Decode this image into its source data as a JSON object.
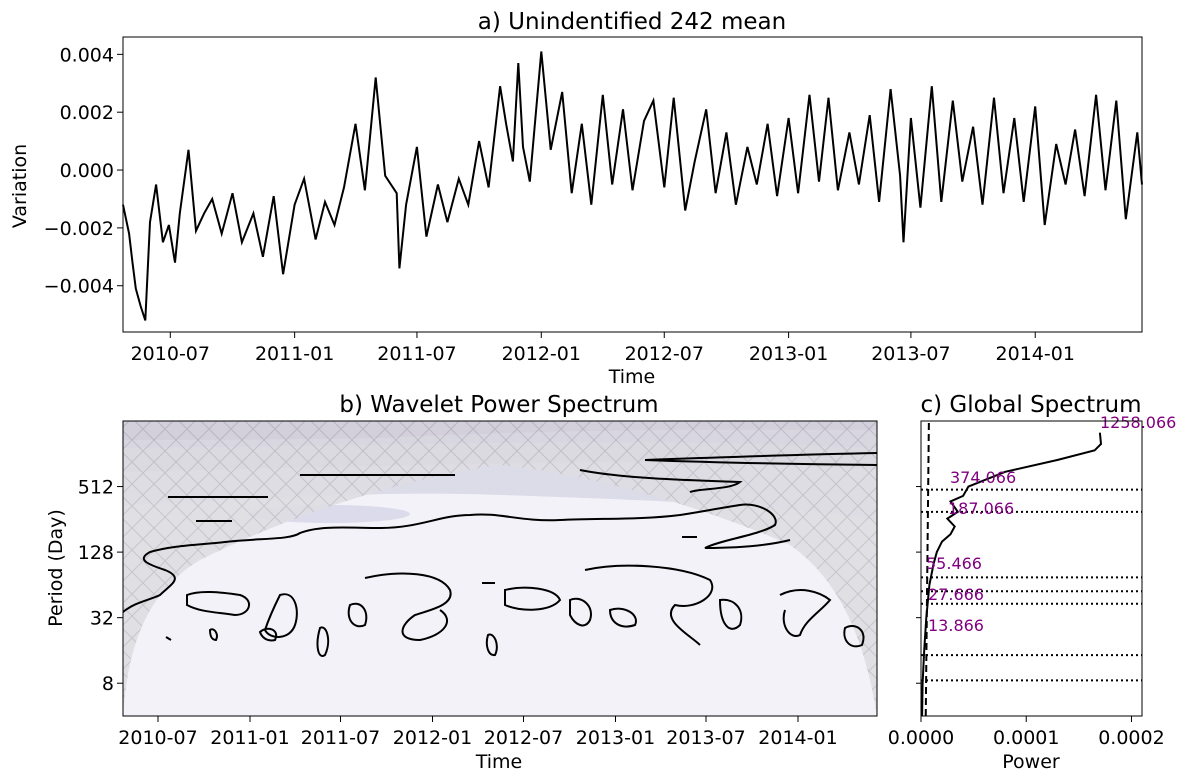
{
  "chart_data": [
    {
      "type": "line",
      "title": "a) Unindentified 242 mean",
      "xlabel": "Time",
      "ylabel": "Variation",
      "xlim": [
        "2010-04-22",
        "2014-06-08"
      ],
      "ylim": [
        -0.0056,
        0.0046
      ],
      "x_tick_labels": [
        "2010-07",
        "2011-01",
        "2011-07",
        "2012-01",
        "2012-07",
        "2013-01",
        "2013-07",
        "2014-01"
      ],
      "y_tick_labels": [
        "0.004",
        "0.002",
        "0.000",
        "−0.002",
        "−0.004"
      ],
      "y_ticks": [
        0.004,
        0.002,
        0.0,
        -0.002,
        -0.004
      ],
      "series": [
        {
          "color": "#000000",
          "x": [
            "2010-04-22",
            "2010-05-01",
            "2010-05-06",
            "2010-05-11",
            "2010-05-18",
            "2010-05-25",
            "2010-06-01",
            "2010-06-10",
            "2010-06-20",
            "2010-06-29",
            "2010-07-08",
            "2010-07-15",
            "2010-07-28",
            "2010-08-08",
            "2010-08-20",
            "2010-09-01",
            "2010-09-15",
            "2010-10-01",
            "2010-10-15",
            "2010-11-01",
            "2010-11-15",
            "2010-12-01",
            "2010-12-15",
            "2011-01-01",
            "2011-01-15",
            "2011-02-01",
            "2011-02-15",
            "2011-03-01",
            "2011-03-15",
            "2011-04-01",
            "2011-04-15",
            "2011-05-01",
            "2011-05-15",
            "2011-06-01",
            "2011-06-05",
            "2011-06-15",
            "2011-07-01",
            "2011-07-15",
            "2011-08-01",
            "2011-08-15",
            "2011-09-01",
            "2011-09-15",
            "2011-10-01",
            "2011-10-15",
            "2011-11-01",
            "2011-11-10",
            "2011-11-20",
            "2011-11-28",
            "2011-12-05",
            "2011-12-15",
            "2012-01-01",
            "2012-01-15",
            "2012-02-01",
            "2012-02-15",
            "2012-03-01",
            "2012-03-15",
            "2012-04-01",
            "2012-04-15",
            "2012-05-01",
            "2012-05-15",
            "2012-06-01",
            "2012-06-15",
            "2012-07-01",
            "2012-07-15",
            "2012-08-01",
            "2012-08-15",
            "2012-09-01",
            "2012-09-15",
            "2012-10-01",
            "2012-10-15",
            "2012-11-01",
            "2012-11-15",
            "2012-12-01",
            "2012-12-15",
            "2013-01-01",
            "2013-01-15",
            "2013-02-01",
            "2013-02-15",
            "2013-03-01",
            "2013-03-15",
            "2013-04-01",
            "2013-04-15",
            "2013-05-01",
            "2013-05-15",
            "2013-06-01",
            "2013-06-15",
            "2013-06-20",
            "2013-07-01",
            "2013-07-15",
            "2013-08-01",
            "2013-08-15",
            "2013-09-01",
            "2013-09-15",
            "2013-10-01",
            "2013-10-15",
            "2013-11-01",
            "2013-11-15",
            "2013-12-01",
            "2013-12-15",
            "2014-01-01",
            "2014-01-15",
            "2014-02-01",
            "2014-02-15",
            "2014-03-01",
            "2014-03-15",
            "2014-04-01",
            "2014-04-15",
            "2014-05-01",
            "2014-05-15",
            "2014-06-01",
            "2014-06-08"
          ],
          "y": [
            -0.0012,
            -0.0022,
            -0.0032,
            -0.0041,
            -0.0047,
            -0.0052,
            -0.0018,
            -0.0005,
            -0.0025,
            -0.0019,
            -0.0032,
            -0.0015,
            0.0007,
            -0.0021,
            -0.0015,
            -0.001,
            -0.0022,
            -0.0008,
            -0.0025,
            -0.0015,
            -0.003,
            -0.0009,
            -0.0036,
            -0.0012,
            -0.0003,
            -0.0024,
            -0.0011,
            -0.0019,
            -0.0006,
            0.0016,
            -0.0007,
            0.0032,
            -0.0002,
            -0.0008,
            -0.0034,
            -0.0012,
            0.0008,
            -0.0023,
            -0.0005,
            -0.0018,
            -0.0003,
            -0.0012,
            0.001,
            -0.0006,
            0.0029,
            0.0016,
            0.0003,
            0.0037,
            0.0008,
            -0.0004,
            0.0041,
            0.0007,
            0.0027,
            -0.0008,
            0.0016,
            -0.0012,
            0.0026,
            -0.0005,
            0.0021,
            -0.0007,
            0.0017,
            0.0024,
            -0.0006,
            0.0025,
            -0.0014,
            0.0003,
            0.0021,
            -0.0008,
            0.0013,
            -0.0012,
            0.0008,
            -0.0005,
            0.0016,
            -0.0009,
            0.0018,
            -0.0008,
            0.0026,
            -0.0004,
            0.0025,
            -0.0007,
            0.0013,
            -0.0005,
            0.0019,
            -0.0011,
            0.0028,
            -0.0002,
            -0.0025,
            0.0018,
            -0.0013,
            0.0029,
            -0.0011,
            0.0024,
            -0.0004,
            0.0015,
            -0.0012,
            0.0025,
            -0.0008,
            0.0018,
            -0.0011,
            0.0022,
            -0.0019,
            0.0009,
            -0.0005,
            0.0014,
            -0.0009,
            0.0026,
            -0.0007,
            0.0024,
            -0.0017,
            0.0013,
            -0.0005
          ]
        }
      ]
    },
    {
      "type": "heatmap",
      "title": "b) Wavelet Power Spectrum",
      "xlabel": "Time",
      "ylabel": "Period (Day)",
      "xlim": [
        "2010-04-22",
        "2014-06-08"
      ],
      "ylim_period_log2": [
        2,
        11
      ],
      "x_tick_labels": [
        "2010-07",
        "2011-01",
        "2011-07",
        "2012-01",
        "2012-07",
        "2013-01",
        "2013-07",
        "2014-01"
      ],
      "y_tick_labels": [
        "512",
        "128",
        "32",
        "8"
      ],
      "y_ticks": [
        512,
        128,
        32,
        8
      ],
      "colormap": "Purples",
      "cone_of_influence": "hatched grey"
    },
    {
      "type": "line",
      "title": "c) Global Spectrum",
      "xlabel": "Power",
      "xlim": [
        0,
        0.00021
      ],
      "x_tick_labels": [
        "0.0000",
        "0.0001",
        "0.0002"
      ],
      "x_ticks": [
        0,
        0.0001,
        0.0002
      ],
      "series": [
        {
          "color": "#000000",
          "period": [
            4,
            8,
            16,
            32,
            64,
            100,
            128,
            160,
            187,
            220,
            260,
            300,
            374,
            420,
            512,
            700,
            900,
            1100,
            1258,
            1600
          ],
          "power": [
            1e-06,
            1.5e-06,
            3e-06,
            5e-06,
            8e-06,
            1.2e-05,
            1.5e-05,
            2e-05,
            2.8e-05,
            3.2e-05,
            2.5e-05,
            3.5e-05,
            2.8e-05,
            4e-05,
            4.5e-05,
            8e-05,
            0.00013,
            0.000165,
            0.000171,
            0.00017
          ]
        }
      ],
      "significance_line": "dashed",
      "peak_labels": [
        "1258.066",
        "374.066",
        "187.066",
        "55.466",
        "27.666",
        "13.866"
      ],
      "peak_label_color": "#800080"
    }
  ]
}
